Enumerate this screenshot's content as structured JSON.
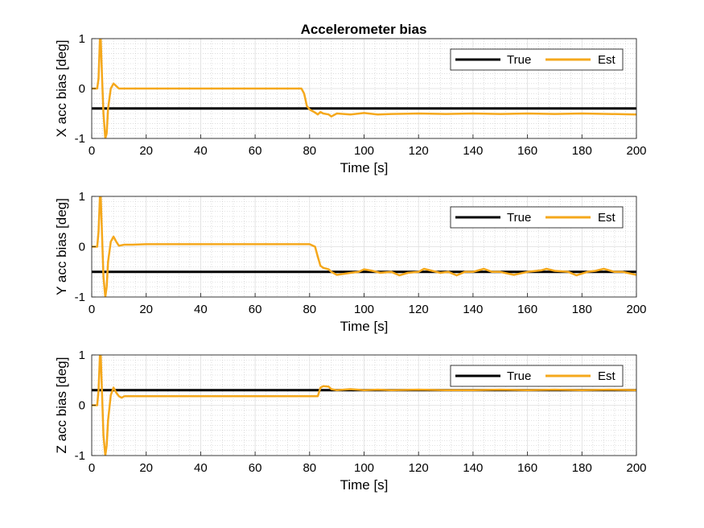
{
  "chart_data": [
    {
      "type": "line",
      "title": "Accelerometer bias",
      "xlabel": "Time [s]",
      "ylabel": "X acc bias [deg]",
      "xlim": [
        0,
        200
      ],
      "ylim": [
        -1,
        1
      ],
      "xticks": [
        "0",
        "20",
        "40",
        "60",
        "80",
        "100",
        "120",
        "140",
        "160",
        "180",
        "200"
      ],
      "yticks": [
        "-1",
        "0",
        "1"
      ],
      "grid": true,
      "minor_grid": true,
      "legend_position": "top-right",
      "series": [
        {
          "name": "True",
          "color": "#000000",
          "x": [
            0,
            200
          ],
          "y": [
            -0.4,
            -0.4
          ]
        },
        {
          "name": "Est",
          "color": "#F5A81C",
          "x": [
            0,
            2,
            2.5,
            3,
            3.3,
            3.8,
            4.3,
            5,
            5.5,
            6,
            7,
            8,
            9,
            10,
            12,
            15,
            20,
            30,
            40,
            50,
            60,
            70,
            77,
            78,
            79,
            80,
            82,
            83,
            84,
            85,
            87,
            88,
            90,
            95,
            100,
            105,
            110,
            120,
            130,
            140,
            150,
            160,
            170,
            180,
            190,
            200
          ],
          "y": [
            0,
            0,
            0.2,
            1.0,
            1.0,
            0.2,
            -0.5,
            -1.0,
            -0.9,
            -0.4,
            0,
            0.1,
            0.05,
            0,
            0,
            0,
            0,
            0,
            0,
            0,
            0,
            0,
            0,
            -0.1,
            -0.35,
            -0.42,
            -0.48,
            -0.52,
            -0.47,
            -0.5,
            -0.52,
            -0.56,
            -0.5,
            -0.52,
            -0.49,
            -0.52,
            -0.51,
            -0.5,
            -0.51,
            -0.5,
            -0.51,
            -0.5,
            -0.51,
            -0.5,
            -0.51,
            -0.52
          ]
        }
      ]
    },
    {
      "type": "line",
      "title": "",
      "xlabel": "Time [s]",
      "ylabel": "Y acc bias [deg]",
      "xlim": [
        0,
        200
      ],
      "ylim": [
        -1,
        1
      ],
      "xticks": [
        "0",
        "20",
        "40",
        "60",
        "80",
        "100",
        "120",
        "140",
        "160",
        "180",
        "200"
      ],
      "yticks": [
        "-1",
        "0",
        "1"
      ],
      "grid": true,
      "minor_grid": true,
      "legend_position": "top-right",
      "series": [
        {
          "name": "True",
          "color": "#000000",
          "x": [
            0,
            200
          ],
          "y": [
            -0.5,
            -0.5
          ]
        },
        {
          "name": "Est",
          "color": "#F5A81C",
          "x": [
            0,
            2,
            2.5,
            3,
            3.3,
            3.8,
            4.3,
            5,
            5.5,
            6,
            7,
            8,
            9,
            10,
            12,
            15,
            20,
            30,
            40,
            50,
            60,
            70,
            80,
            82,
            83,
            84,
            85,
            87,
            88,
            90,
            95,
            98,
            100,
            103,
            106,
            110,
            113,
            116,
            120,
            122,
            125,
            128,
            131,
            134,
            137,
            140,
            144,
            147,
            150,
            155,
            160,
            165,
            167,
            170,
            175,
            178,
            182,
            185,
            188,
            192,
            195,
            200
          ],
          "y": [
            0,
            0,
            0.3,
            1.0,
            1.0,
            0.2,
            -0.6,
            -1.0,
            -0.8,
            -0.3,
            0.1,
            0.2,
            0.1,
            0.02,
            0.04,
            0.04,
            0.05,
            0.05,
            0.05,
            0.05,
            0.05,
            0.05,
            0.05,
            0.0,
            -0.2,
            -0.38,
            -0.42,
            -0.45,
            -0.5,
            -0.56,
            -0.52,
            -0.5,
            -0.45,
            -0.48,
            -0.52,
            -0.5,
            -0.57,
            -0.52,
            -0.5,
            -0.44,
            -0.48,
            -0.52,
            -0.5,
            -0.57,
            -0.5,
            -0.5,
            -0.44,
            -0.5,
            -0.5,
            -0.56,
            -0.5,
            -0.47,
            -0.44,
            -0.48,
            -0.5,
            -0.57,
            -0.5,
            -0.48,
            -0.44,
            -0.5,
            -0.5,
            -0.56
          ]
        }
      ]
    },
    {
      "type": "line",
      "title": "",
      "xlabel": "Time [s]",
      "ylabel": "Z acc bias [deg]",
      "xlim": [
        0,
        200
      ],
      "ylim": [
        -1,
        1
      ],
      "xticks": [
        "0",
        "20",
        "40",
        "60",
        "80",
        "100",
        "120",
        "140",
        "160",
        "180",
        "200"
      ],
      "yticks": [
        "-1",
        "0",
        "1"
      ],
      "grid": true,
      "minor_grid": true,
      "legend_position": "top-right",
      "series": [
        {
          "name": "True",
          "color": "#000000",
          "x": [
            0,
            200
          ],
          "y": [
            0.3,
            0.3
          ]
        },
        {
          "name": "Est",
          "color": "#F5A81C",
          "x": [
            0,
            2,
            2.5,
            3,
            3.3,
            3.8,
            4.3,
            5,
            5.5,
            6,
            7,
            8,
            9,
            10,
            11,
            12,
            15,
            20,
            30,
            40,
            50,
            60,
            70,
            80,
            83,
            84,
            85,
            87,
            88,
            90,
            95,
            100,
            105,
            110,
            120,
            130,
            140,
            150,
            160,
            170,
            180,
            190,
            200
          ],
          "y": [
            0,
            0,
            0.3,
            1.0,
            1.0,
            0.2,
            -0.6,
            -1.0,
            -0.8,
            -0.3,
            0.2,
            0.35,
            0.25,
            0.18,
            0.15,
            0.18,
            0.18,
            0.18,
            0.18,
            0.18,
            0.18,
            0.18,
            0.18,
            0.18,
            0.18,
            0.35,
            0.38,
            0.37,
            0.32,
            0.3,
            0.32,
            0.3,
            0.31,
            0.3,
            0.31,
            0.3,
            0.3,
            0.31,
            0.3,
            0.31,
            0.3,
            0.31,
            0.3
          ]
        }
      ]
    }
  ]
}
